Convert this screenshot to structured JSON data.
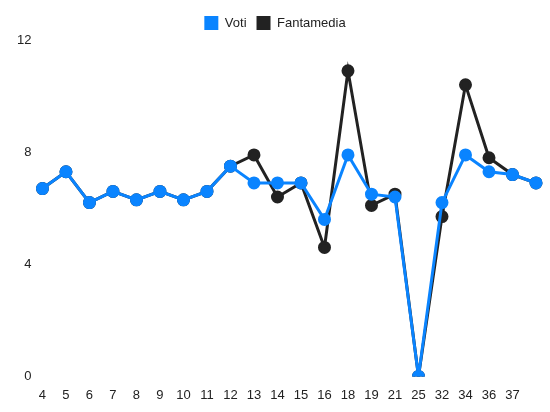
{
  "chart_data": {
    "type": "line",
    "categories": [
      "4",
      "5",
      "6",
      "7",
      "8",
      "9",
      "10",
      "11",
      "12",
      "13",
      "14",
      "15",
      "16",
      "18",
      "19",
      "21",
      "25",
      "32",
      "34",
      "36",
      "37",
      null
    ],
    "series": [
      {
        "name": "Voti",
        "color": "#0a84ff",
        "values": [
          6.7,
          7.3,
          6.2,
          6.6,
          6.3,
          6.6,
          6.3,
          6.6,
          7.5,
          6.9,
          6.9,
          6.9,
          5.6,
          7.9,
          6.5,
          6.4,
          0,
          6.2,
          7.9,
          7.3,
          7.2,
          6.9
        ]
      },
      {
        "name": "Fantamedia",
        "color": "#222222",
        "values": [
          6.7,
          7.3,
          6.2,
          6.6,
          6.3,
          6.6,
          6.3,
          6.6,
          7.5,
          7.9,
          6.4,
          6.9,
          4.6,
          10.9,
          6.1,
          6.5,
          0,
          5.7,
          10.4,
          7.8,
          7.2,
          6.9
        ]
      }
    ],
    "ylim": [
      0,
      12
    ],
    "yticks": [
      0,
      4,
      8,
      12
    ],
    "grid": false,
    "legend": "top",
    "marker": "circle",
    "line_style": "solid"
  }
}
